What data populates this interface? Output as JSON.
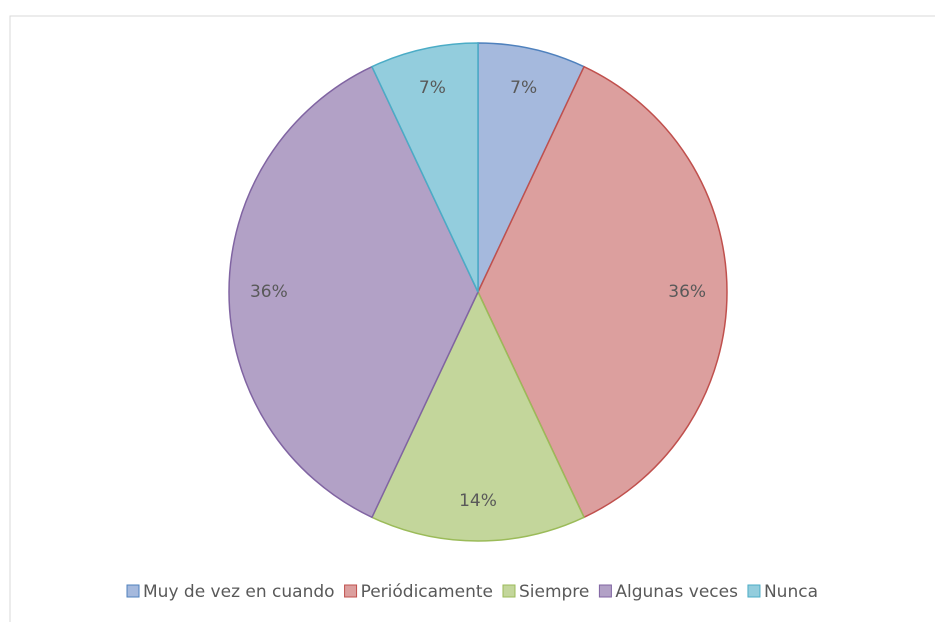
{
  "chart_data": {
    "type": "pie",
    "categories": [
      "Muy de vez en cuando",
      "Periódicamente",
      "Siempre",
      "Algunas veces",
      "Nunca"
    ],
    "values": [
      7,
      36,
      14,
      36,
      7
    ],
    "value_labels": [
      "7%",
      "36%",
      "14%",
      "36%",
      "7%"
    ],
    "colors": [
      "#a5b9dd",
      "#dc9f9e",
      "#c3d69b",
      "#b2a1c6",
      "#93cddd"
    ],
    "edge_colors": [
      "#4f81bd",
      "#c0504d",
      "#9bbb59",
      "#8064a2",
      "#4bacc6"
    ],
    "legend": "bottom"
  }
}
